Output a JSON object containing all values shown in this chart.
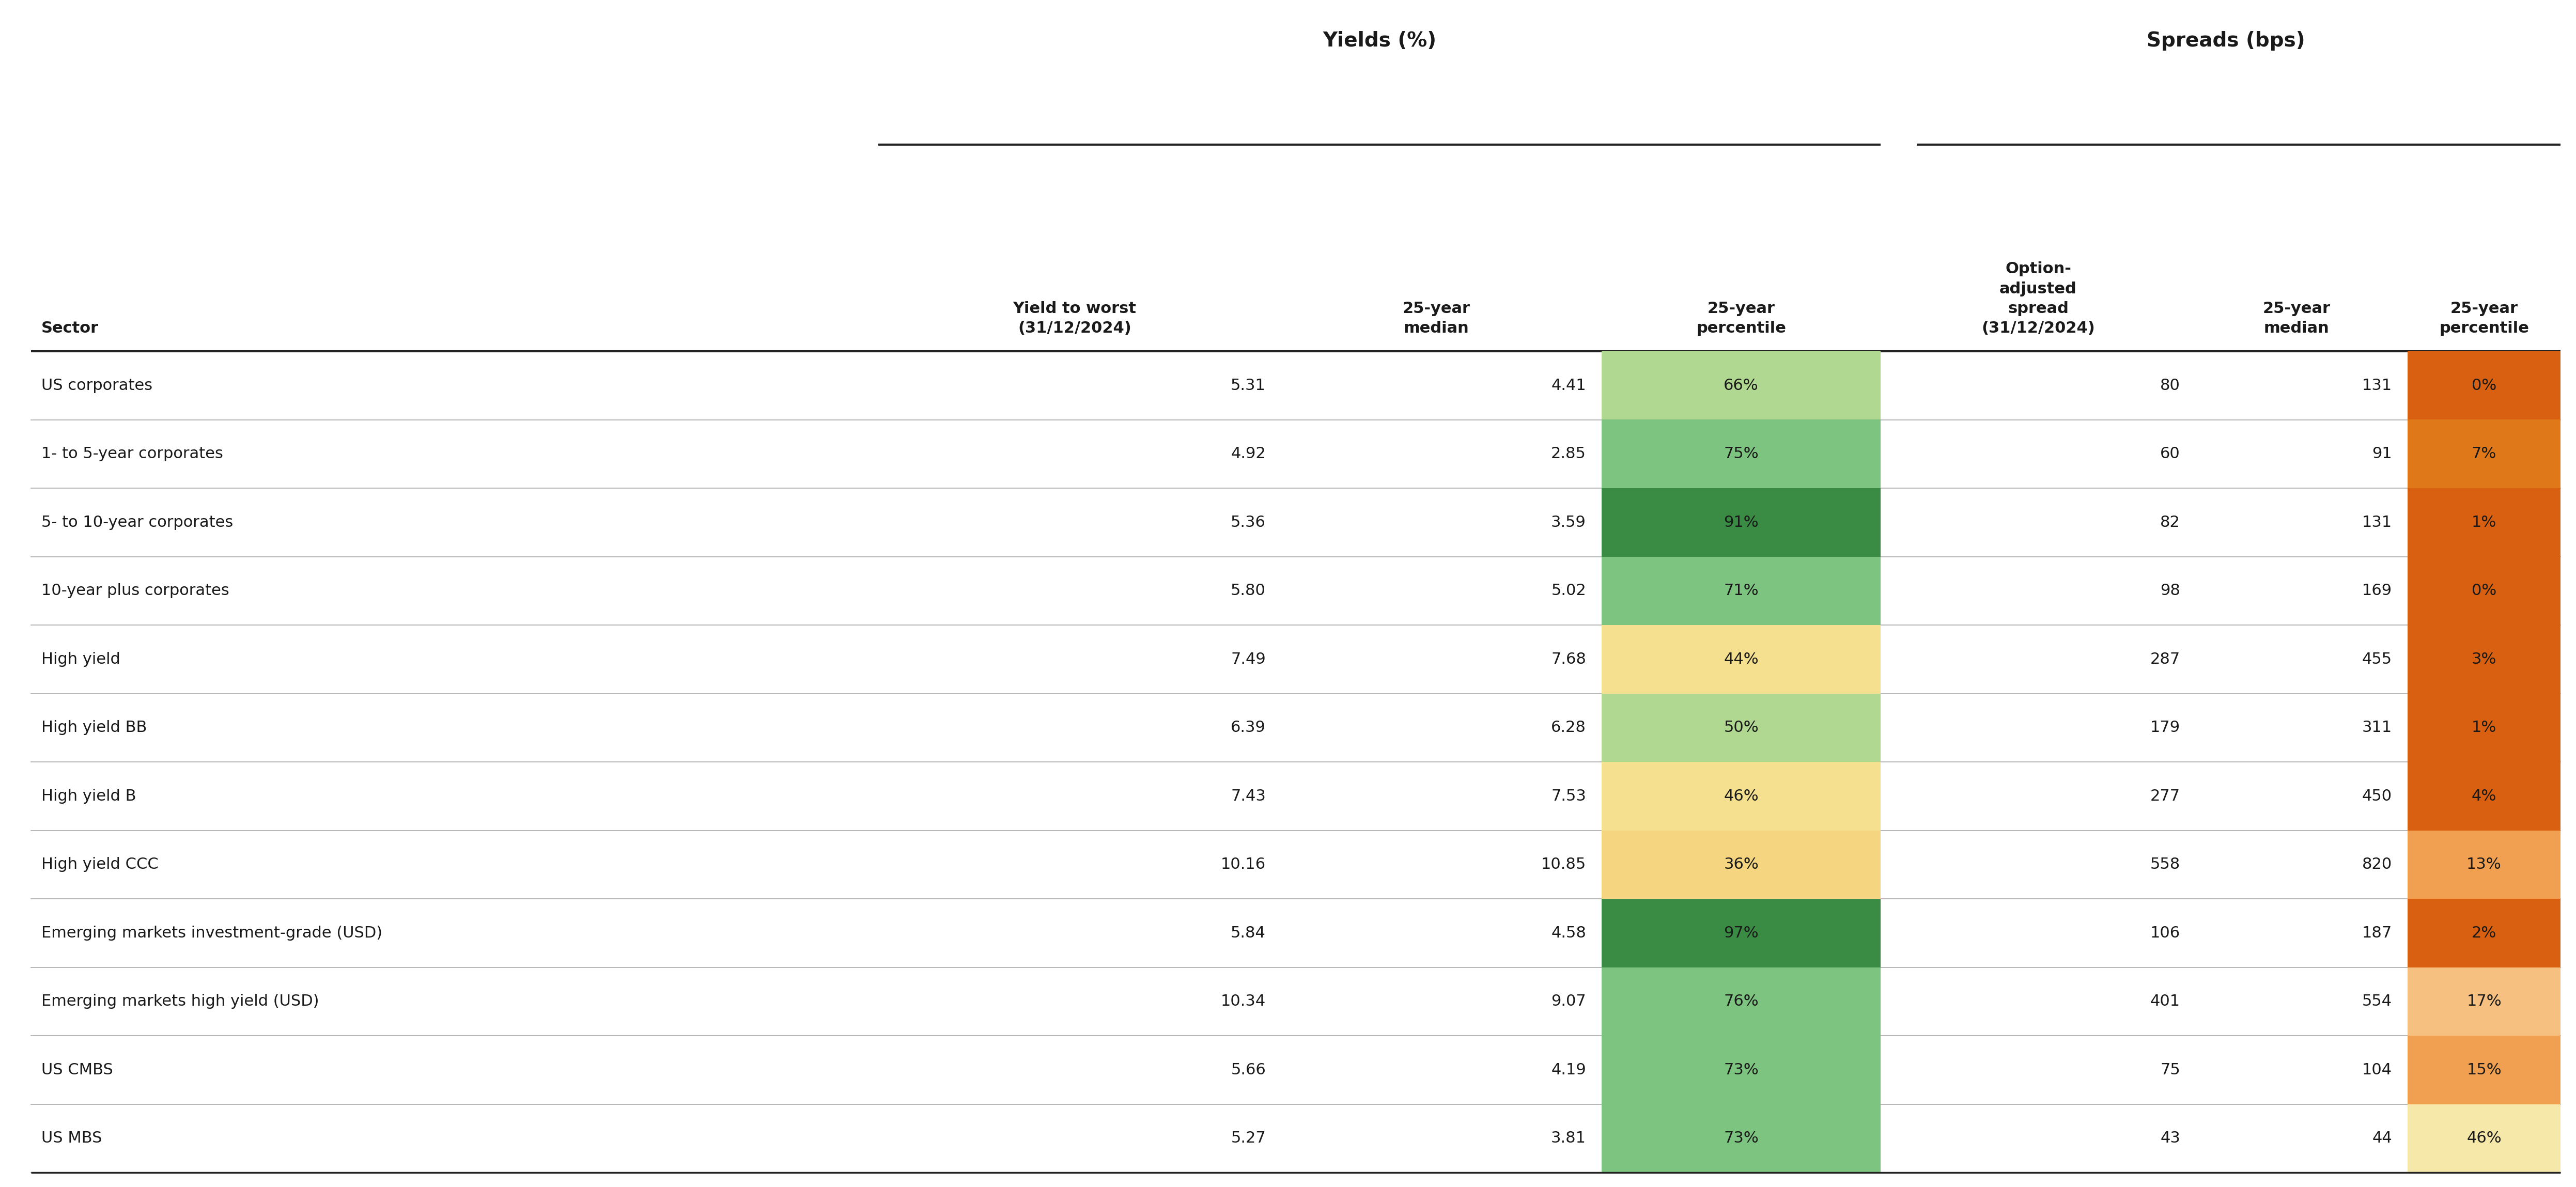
{
  "sectors": [
    "US corporates",
    "1- to 5-year corporates",
    "5- to 10-year corporates",
    "10-year plus corporates",
    "High yield",
    "High yield BB",
    "High yield B",
    "High yield CCC",
    "Emerging markets investment-grade (USD)",
    "Emerging markets high yield (USD)",
    "US CMBS",
    "US MBS"
  ],
  "yield_to_worst": [
    5.31,
    4.92,
    5.36,
    5.8,
    7.49,
    6.39,
    7.43,
    10.16,
    5.84,
    10.34,
    5.66,
    5.27
  ],
  "yield_25yr_median": [
    4.41,
    2.85,
    3.59,
    5.02,
    7.68,
    6.28,
    7.53,
    10.85,
    4.58,
    9.07,
    4.19,
    3.81
  ],
  "yield_25yr_pct": [
    "66%",
    "75%",
    "91%",
    "71%",
    "44%",
    "50%",
    "46%",
    "36%",
    "97%",
    "76%",
    "73%",
    "73%"
  ],
  "yield_25yr_pct_val": [
    66,
    75,
    91,
    71,
    44,
    50,
    46,
    36,
    97,
    76,
    73,
    73
  ],
  "oas": [
    80,
    60,
    82,
    98,
    287,
    179,
    277,
    558,
    106,
    401,
    75,
    43
  ],
  "spread_25yr_median": [
    131,
    91,
    131,
    169,
    455,
    311,
    450,
    820,
    187,
    554,
    104,
    44
  ],
  "spread_25yr_pct": [
    "0%",
    "7%",
    "1%",
    "0%",
    "3%",
    "1%",
    "4%",
    "13%",
    "2%",
    "17%",
    "15%",
    "46%"
  ],
  "spread_25yr_pct_val": [
    0,
    7,
    1,
    0,
    3,
    1,
    4,
    13,
    2,
    17,
    15,
    46
  ],
  "col_header_yields_group": "Yields (%)",
  "col_header_spreads_group": "Spreads (bps)",
  "col_header_sector": "Sector",
  "col_header_ytw": "Yield to worst\n(31/12/2024)",
  "col_header_y_median": "25-year\nmedian",
  "col_header_y_pct": "25-year\npercentile",
  "col_header_oas": "Option-\nadjusted\nspread\n(31/12/2024)",
  "col_header_s_median": "25-year\nmedian",
  "col_header_s_pct": "25-year\npercentile",
  "bg_color": "#ffffff",
  "text_color": "#1a1a1a",
  "header_text_color": "#1a1a1a",
  "group_line_color": "#222222",
  "row_line_color": "#aaaaaa",
  "yield_colors": {
    "very_high": "#3a8c45",
    "high": "#7cc47f",
    "mid": "#afd890",
    "low_yellow": "#f5df99",
    "low_orange": "#f5d580"
  },
  "spread_colors": {
    "very_low_0": "#d96010",
    "very_low_1": "#d96010",
    "low_3": "#d96010",
    "low_4": "#d96010",
    "low_7": "#de7820",
    "low_13": "#f0aa60",
    "low_15": "#f0aa60",
    "low_17": "#f5c080",
    "mid_46": "#f5e8b0"
  }
}
